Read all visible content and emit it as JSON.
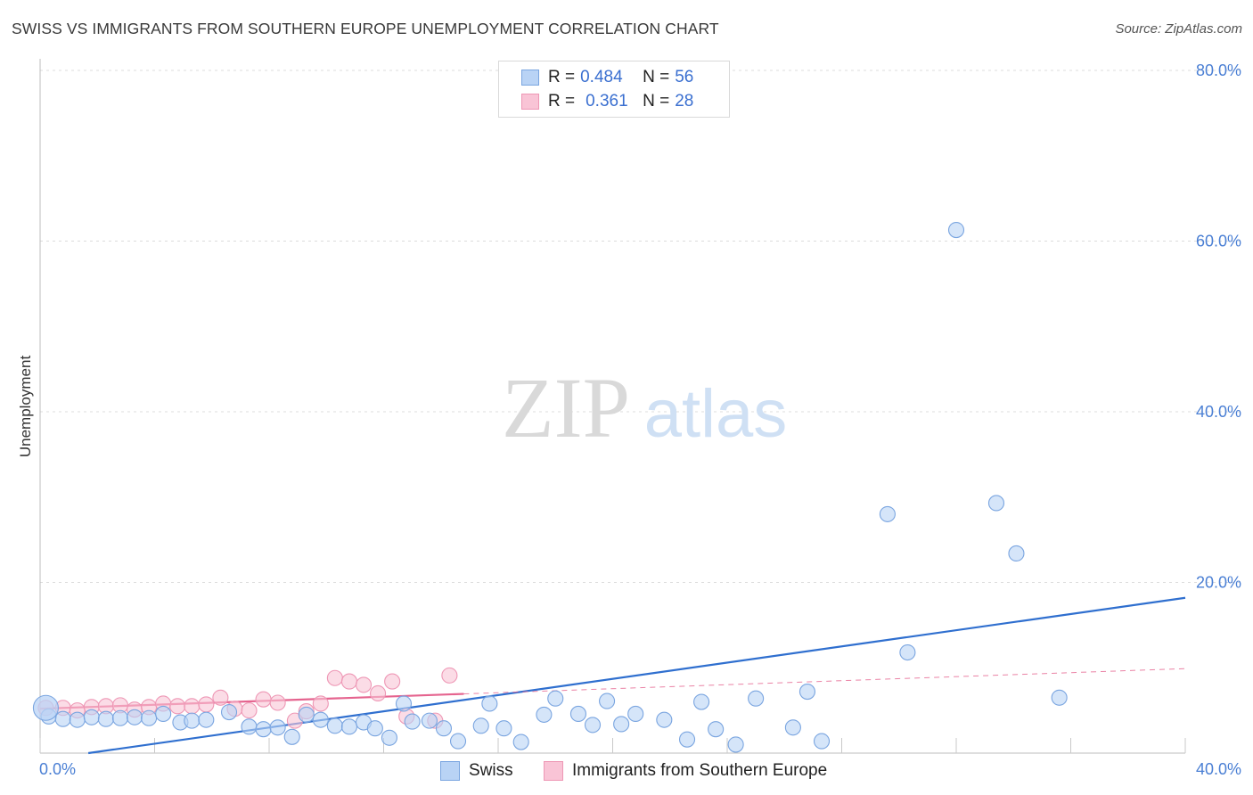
{
  "header": {
    "title": "SWISS VS IMMIGRANTS FROM SOUTHERN EUROPE UNEMPLOYMENT CORRELATION CHART",
    "source": "Source: ZipAtlas.com"
  },
  "watermark": {
    "zip": "ZIP",
    "atlas": "atlas"
  },
  "legend": {
    "swiss": {
      "r_label": "R =",
      "r_value": "0.484",
      "n_label": "N =",
      "n_value": "56"
    },
    "immigrants": {
      "r_label": "R =",
      "r_value": "0.361",
      "n_label": "N =",
      "n_value": "28"
    }
  },
  "colors": {
    "swiss_fill": "#b9d3f5",
    "swiss_stroke": "#7aa5e0",
    "swiss_line": "#2f6fcf",
    "immigrants_fill": "#f9c4d6",
    "immigrants_stroke": "#ee97b5",
    "immigrants_line": "#e5648f",
    "tick_text": "#4a7fd4",
    "grid": "#dcdcdc"
  },
  "chart_data": {
    "type": "scatter",
    "title": "SWISS VS IMMIGRANTS FROM SOUTHERN EUROPE UNEMPLOYMENT CORRELATION CHART",
    "xlabel": "",
    "ylabel": "Unemployment",
    "xlim": [
      0,
      40
    ],
    "ylim": [
      0,
      80
    ],
    "x_tick_labels": [
      "0.0%",
      "40.0%"
    ],
    "y_ticks": [
      20,
      40,
      60,
      80
    ],
    "y_tick_labels": [
      "20.0%",
      "40.0%",
      "60.0%",
      "80.0%"
    ],
    "grid": true,
    "legend_position": "top-center",
    "series": [
      {
        "name": "Swiss",
        "trend": {
          "x": [
            0,
            40
          ],
          "y": [
            -0.8,
            18.2
          ],
          "x_end_solid": 40
        },
        "points": [
          {
            "x": 0.3,
            "y": 4.3
          },
          {
            "x": 0.8,
            "y": 4.0
          },
          {
            "x": 1.3,
            "y": 3.9
          },
          {
            "x": 1.8,
            "y": 4.2
          },
          {
            "x": 2.3,
            "y": 4.0
          },
          {
            "x": 2.8,
            "y": 4.1
          },
          {
            "x": 3.3,
            "y": 4.2
          },
          {
            "x": 3.8,
            "y": 4.1
          },
          {
            "x": 4.3,
            "y": 4.6
          },
          {
            "x": 4.9,
            "y": 3.6
          },
          {
            "x": 5.3,
            "y": 3.8
          },
          {
            "x": 5.8,
            "y": 3.9
          },
          {
            "x": 6.6,
            "y": 4.8
          },
          {
            "x": 7.3,
            "y": 3.1
          },
          {
            "x": 7.8,
            "y": 2.8
          },
          {
            "x": 8.3,
            "y": 3.0
          },
          {
            "x": 8.8,
            "y": 1.9
          },
          {
            "x": 9.3,
            "y": 4.5
          },
          {
            "x": 9.8,
            "y": 3.9
          },
          {
            "x": 10.3,
            "y": 3.2
          },
          {
            "x": 10.8,
            "y": 3.1
          },
          {
            "x": 11.3,
            "y": 3.6
          },
          {
            "x": 11.7,
            "y": 2.9
          },
          {
            "x": 12.2,
            "y": 1.8
          },
          {
            "x": 12.7,
            "y": 5.8
          },
          {
            "x": 13.0,
            "y": 3.7
          },
          {
            "x": 13.6,
            "y": 3.8
          },
          {
            "x": 14.1,
            "y": 2.9
          },
          {
            "x": 14.6,
            "y": 1.4
          },
          {
            "x": 15.4,
            "y": 3.2
          },
          {
            "x": 15.7,
            "y": 5.8
          },
          {
            "x": 16.2,
            "y": 2.9
          },
          {
            "x": 16.8,
            "y": 1.3
          },
          {
            "x": 17.6,
            "y": 4.5
          },
          {
            "x": 18.0,
            "y": 6.4
          },
          {
            "x": 18.8,
            "y": 4.6
          },
          {
            "x": 19.3,
            "y": 3.3
          },
          {
            "x": 19.8,
            "y": 6.1
          },
          {
            "x": 20.3,
            "y": 3.4
          },
          {
            "x": 20.8,
            "y": 4.6
          },
          {
            "x": 21.8,
            "y": 3.9
          },
          {
            "x": 22.6,
            "y": 1.6
          },
          {
            "x": 23.1,
            "y": 6.0
          },
          {
            "x": 23.6,
            "y": 2.8
          },
          {
            "x": 24.3,
            "y": 1.0
          },
          {
            "x": 25.0,
            "y": 6.4
          },
          {
            "x": 26.3,
            "y": 3.0
          },
          {
            "x": 26.8,
            "y": 7.2
          },
          {
            "x": 27.3,
            "y": 1.4
          },
          {
            "x": 29.6,
            "y": 28.0
          },
          {
            "x": 30.3,
            "y": 11.8
          },
          {
            "x": 32.0,
            "y": 61.3
          },
          {
            "x": 33.4,
            "y": 29.3
          },
          {
            "x": 34.1,
            "y": 23.4
          },
          {
            "x": 35.6,
            "y": 6.5
          },
          {
            "x": 0.2,
            "y": 5.3
          }
        ]
      },
      {
        "name": "Immigrants from Southern Europe",
        "trend": {
          "x": [
            0,
            40
          ],
          "y": [
            5.2,
            9.9
          ],
          "x_end_solid": 14.8
        },
        "points": [
          {
            "x": 0.2,
            "y": 5.3
          },
          {
            "x": 0.8,
            "y": 5.3
          },
          {
            "x": 1.3,
            "y": 5.0
          },
          {
            "x": 1.8,
            "y": 5.4
          },
          {
            "x": 2.3,
            "y": 5.5
          },
          {
            "x": 2.8,
            "y": 5.6
          },
          {
            "x": 3.3,
            "y": 5.1
          },
          {
            "x": 3.8,
            "y": 5.4
          },
          {
            "x": 4.3,
            "y": 5.8
          },
          {
            "x": 4.8,
            "y": 5.5
          },
          {
            "x": 5.3,
            "y": 5.5
          },
          {
            "x": 5.8,
            "y": 5.7
          },
          {
            "x": 6.3,
            "y": 6.5
          },
          {
            "x": 6.8,
            "y": 5.2
          },
          {
            "x": 7.3,
            "y": 5.0
          },
          {
            "x": 7.8,
            "y": 6.3
          },
          {
            "x": 8.3,
            "y": 5.9
          },
          {
            "x": 8.9,
            "y": 3.8
          },
          {
            "x": 9.3,
            "y": 4.9
          },
          {
            "x": 9.8,
            "y": 5.8
          },
          {
            "x": 10.3,
            "y": 8.8
          },
          {
            "x": 10.8,
            "y": 8.4
          },
          {
            "x": 11.3,
            "y": 8.0
          },
          {
            "x": 11.8,
            "y": 7.0
          },
          {
            "x": 12.3,
            "y": 8.4
          },
          {
            "x": 12.8,
            "y": 4.3
          },
          {
            "x": 13.8,
            "y": 3.8
          },
          {
            "x": 14.3,
            "y": 9.1
          }
        ]
      }
    ]
  },
  "bottom_legend": {
    "swiss_label": "Swiss",
    "immigrants_label": "Immigrants from Southern Europe"
  }
}
